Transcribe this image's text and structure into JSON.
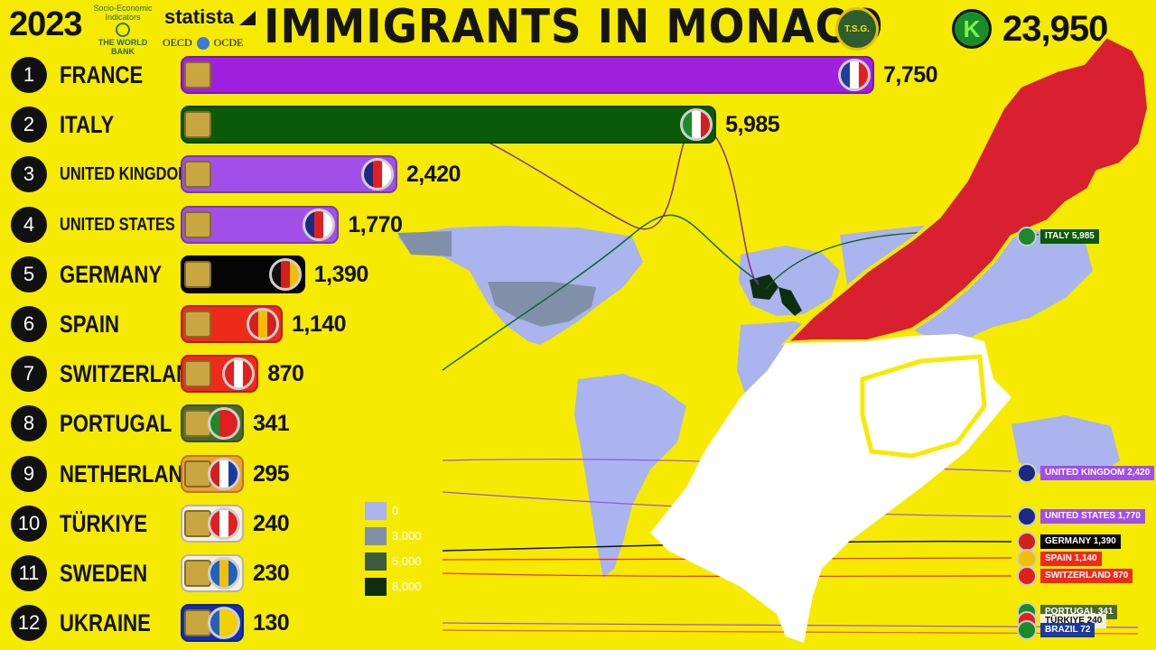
{
  "header": {
    "year": "2023",
    "title": "IMMIGRANTS IN MONACO",
    "total": "23,950",
    "worldbank_label": "Socio-Economic Indicators",
    "worldbank_name": "THE WORLD BANK",
    "statista": "statista",
    "oecd": "OECD",
    "ocde": "OCDE",
    "tsg": "T.S.G.",
    "k_logo": "K"
  },
  "legend": {
    "items": [
      {
        "label": "0",
        "color": "#aab4ee"
      },
      {
        "label": "3,000",
        "color": "#8090a8"
      },
      {
        "label": "5,000",
        "color": "#3c5a3c"
      },
      {
        "label": "8,000",
        "color": "#0e2e10"
      }
    ]
  },
  "chart_data": {
    "type": "bar",
    "title": "IMMIGRANTS IN MONACO",
    "year": "2023",
    "total": 23950,
    "categories": [
      "FRANCE",
      "ITALY",
      "UNITED KINGDOM",
      "UNITED STATES",
      "GERMANY",
      "SPAIN",
      "SWITZERLAND",
      "PORTUGAL",
      "NETHERLANDS",
      "TÜRKIYE",
      "SWEDEN",
      "UKRAINE"
    ],
    "ranks": [
      "1",
      "2",
      "3",
      "4",
      "5",
      "6",
      "7",
      "8",
      "9",
      "10",
      "11",
      "12"
    ],
    "values": [
      7750,
      5985,
      2420,
      1770,
      1390,
      1140,
      870,
      341,
      295,
      240,
      230,
      130
    ],
    "value_labels": [
      "7,750",
      "5,985",
      "2,420",
      "1,770",
      "1,390",
      "1,140",
      "870",
      "341",
      "295",
      "240",
      "230",
      "130"
    ],
    "bar_colors": [
      "#a020e0",
      "#0a5a0a",
      "#a24ee8",
      "#a24ee8",
      "#050505",
      "#ee2a1a",
      "#ee2a1a",
      "#4a6a2a",
      "#f0a030",
      "#f4efe0",
      "#f4efe0",
      "#1030b0"
    ],
    "flag_colors": [
      [
        "#1f3ea0",
        "#ffffff",
        "#e02020"
      ],
      [
        "#1a8a2a",
        "#ffffff",
        "#d02020"
      ],
      [
        "#1a2a80",
        "#e02020",
        "#ffffff"
      ],
      [
        "#1a2a80",
        "#e02020",
        "#ffffff"
      ],
      [
        "#111111",
        "#d02020",
        "#f0c000"
      ],
      [
        "#d02020",
        "#f0c000",
        "#d02020"
      ],
      [
        "#e02020",
        "#ffffff",
        "#e02020"
      ],
      [
        "#1a8a2a",
        "#e02020",
        "#e02020"
      ],
      [
        "#d02020",
        "#ffffff",
        "#1a3aa0"
      ],
      [
        "#e02020",
        "#ffffff",
        "#e02020"
      ],
      [
        "#2060c0",
        "#f0c000",
        "#2060c0"
      ],
      [
        "#2060c0",
        "#f0d000",
        "#f0d000"
      ]
    ],
    "xlim": [
      0,
      7750
    ],
    "map_tags": [
      {
        "label": "ITALY 5,985",
        "bg": "#0a5a0a",
        "fg": "#ffffff",
        "flag": "#1a8a2a"
      },
      {
        "label": "UNITED KINGDOM 2,420",
        "bg": "#a24ee8",
        "fg": "#ffffff",
        "flag": "#1a2a80"
      },
      {
        "label": "UNITED STATES 1,770",
        "bg": "#a24ee8",
        "fg": "#ffffff",
        "flag": "#1a2a80"
      },
      {
        "label": "GERMANY 1,390",
        "bg": "#050505",
        "fg": "#ffffff",
        "flag": "#d02020"
      },
      {
        "label": "SPAIN 1,140",
        "bg": "#ee2a1a",
        "fg": "#ffffff",
        "flag": "#f0c000"
      },
      {
        "label": "SWITZERLAND 870",
        "bg": "#ee2a1a",
        "fg": "#ffffff",
        "flag": "#e02020"
      },
      {
        "label": "PORTUGAL 341",
        "bg": "#4a6a2a",
        "fg": "#ffffff",
        "flag": "#1a8a2a"
      },
      {
        "label": "TÜRKIYE 240",
        "bg": "#f4efe0",
        "fg": "#111111",
        "flag": "#e02020"
      },
      {
        "label": "BRAZIL 72",
        "bg": "#1a3aa0",
        "fg": "#ffffff",
        "flag": "#1a8a2a"
      }
    ]
  }
}
